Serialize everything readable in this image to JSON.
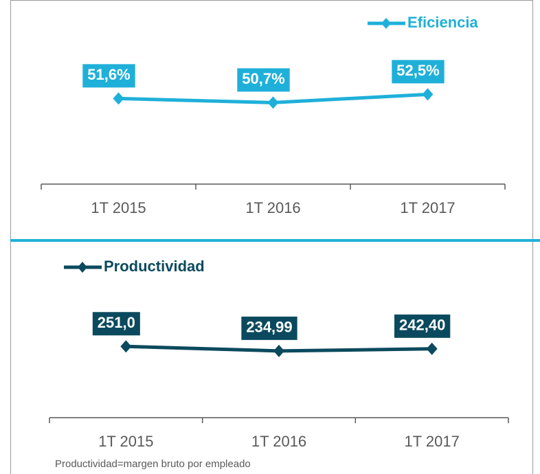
{
  "chart_data": [
    {
      "type": "line",
      "categories": [
        "1T 2015",
        "1T 2016",
        "1T 2017"
      ],
      "series": [
        {
          "name": "Eficiencia",
          "color": "#1fb0d9",
          "values": [
            51.6,
            50.7,
            52.5
          ],
          "value_labels": [
            "51,6%",
            "50,7%",
            "52,5%"
          ]
        }
      ],
      "ylim": [
        33,
        73
      ],
      "legend": "upper right"
    },
    {
      "type": "line",
      "categories": [
        "1T 2015",
        "1T 2016",
        "1T 2017"
      ],
      "series": [
        {
          "name": "Productividad",
          "color": "#0b4a5e",
          "values": [
            251.0,
            234.99,
            242.4
          ],
          "value_labels": [
            "251,0",
            "234,99",
            "242,40"
          ]
        }
      ],
      "ylim": [
        0,
        600
      ],
      "legend": "upper left"
    }
  ],
  "footnote": "Productividad=margen bruto por empleado"
}
